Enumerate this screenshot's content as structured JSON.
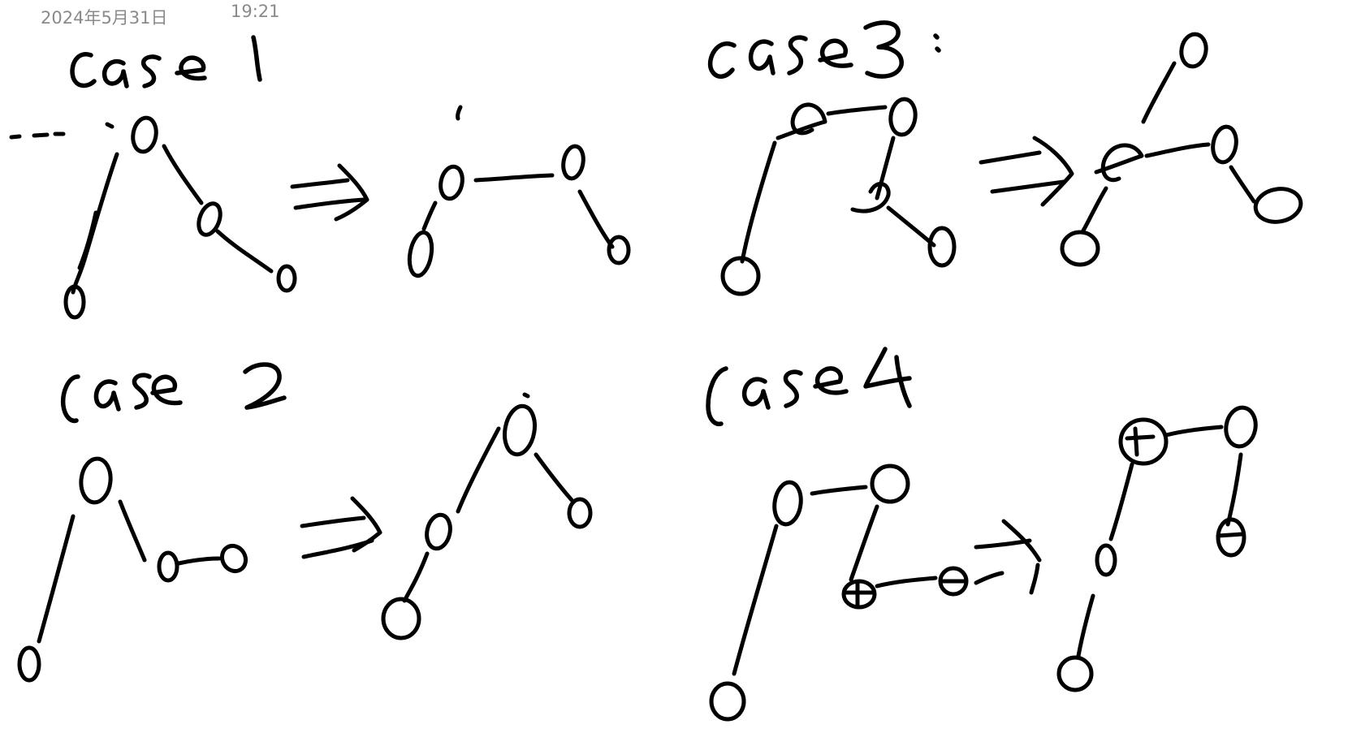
{
  "header": {
    "date": "2024年5月31日",
    "time": "19:21"
  },
  "colors": {
    "ink": "#000000",
    "timestamp": "#8a8a8a",
    "background": "#ffffff"
  },
  "cases": [
    {
      "label": "case1"
    },
    {
      "label": "case 2"
    },
    {
      "label": "case3:"
    },
    {
      "label": "case4"
    }
  ]
}
